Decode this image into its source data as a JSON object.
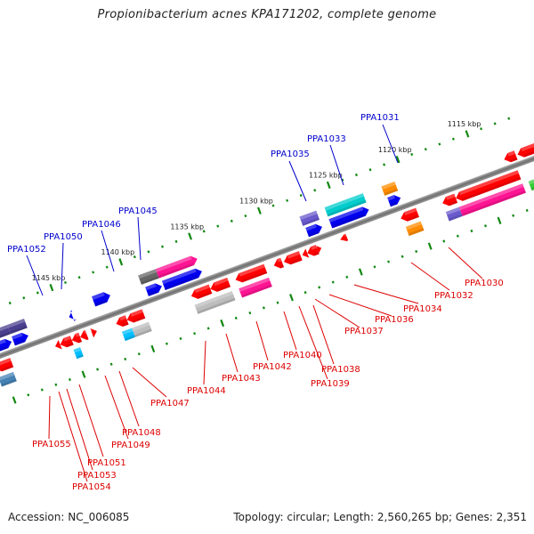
{
  "title": "Propionibacterium acnes KPA171202, complete genome",
  "footer": {
    "accession": "Accession: NC_006085",
    "summary": "Topology: circular; Length: 2,560,265 bp; Genes: 2,351"
  },
  "colors": {
    "backbone": "#808080",
    "tick": "#118811",
    "top_label": "#0000cc",
    "bottom_label": "#dd0000"
  },
  "scale": {
    "unit": "kbp",
    "ticks": [
      {
        "label": "1115 kbp",
        "kbp": 1115
      },
      {
        "label": "1120 kbp",
        "kbp": 1120
      },
      {
        "label": "1125 kbp",
        "kbp": 1125
      },
      {
        "label": "1130 kbp",
        "kbp": 1130
      },
      {
        "label": "1135 kbp",
        "kbp": 1135
      },
      {
        "label": "1140 kbp",
        "kbp": 1140
      },
      {
        "label": "1145 kbp",
        "kbp": 1145
      }
    ]
  },
  "top_labels": [
    {
      "name": "PPA1031",
      "color": "#ff8c00"
    },
    {
      "name": "PPA1033",
      "color": "#00cccc"
    },
    {
      "name": "PPA1035",
      "color": "#6a5acd"
    },
    {
      "name": "PPA1045",
      "color": "#ff1493"
    },
    {
      "name": "PPA1046",
      "color": "#666666"
    },
    {
      "name": "PPA1050",
      "color": "#0000ff"
    },
    {
      "name": "PPA1052",
      "color": "#483d8b"
    }
  ],
  "bottom_labels": [
    {
      "name": "PPA1030"
    },
    {
      "name": "PPA1032"
    },
    {
      "name": "PPA1034"
    },
    {
      "name": "PPA1036"
    },
    {
      "name": "PPA1037"
    },
    {
      "name": "PPA1038"
    },
    {
      "name": "PPA1039"
    },
    {
      "name": "PPA1040"
    },
    {
      "name": "PPA1042"
    },
    {
      "name": "PPA1043"
    },
    {
      "name": "PPA1044"
    },
    {
      "name": "PPA1047"
    },
    {
      "name": "PPA1048"
    },
    {
      "name": "PPA1049"
    },
    {
      "name": "PPA1051"
    },
    {
      "name": "PPA1053"
    },
    {
      "name": "PPA1054"
    },
    {
      "name": "PPA1055"
    }
  ]
}
